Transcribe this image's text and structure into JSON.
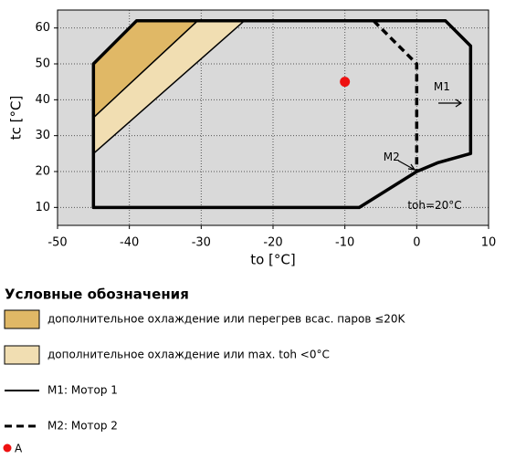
{
  "chart_data": {
    "type": "envelope",
    "xlabel": "to [°C]",
    "ylabel": "tc [°C]",
    "xlim": [
      -50,
      10
    ],
    "ylim": [
      5,
      65
    ],
    "xticks": [
      -50,
      -40,
      -30,
      -20,
      -10,
      0,
      10
    ],
    "yticks": [
      10,
      20,
      30,
      40,
      50,
      60
    ],
    "grid": true,
    "background": "#d9d9d9",
    "legend_title": "Условные обозначения",
    "series": [
      {
        "name": "дополнительное охлаждение или перегрев всас. паров ≤20K",
        "kind": "fill",
        "color": "#e0b866",
        "x": [
          -45,
          -39,
          -30.5,
          -45
        ],
        "y": [
          50,
          62,
          62,
          35
        ]
      },
      {
        "name": "дополнительное охлаждение или max. toh <0°C",
        "kind": "fill",
        "color": "#f1deb2",
        "x": [
          -45,
          -30.5,
          -24,
          -45
        ],
        "y": [
          35,
          62,
          62,
          25
        ]
      },
      {
        "name": "M1: Мотор 1",
        "kind": "line",
        "color": "#000000",
        "dashed": false,
        "x": [
          -45,
          -45,
          -39,
          4,
          7.5,
          7.5,
          3,
          0,
          -8
        ],
        "y": [
          10,
          50,
          62,
          62,
          55,
          25,
          22.5,
          20,
          10
        ]
      },
      {
        "name": "M2: Мотор 2",
        "kind": "line",
        "color": "#000000",
        "dashed": true,
        "x": [
          -6,
          0,
          0
        ],
        "y": [
          62,
          50,
          20
        ]
      },
      {
        "name": "A",
        "kind": "point",
        "color": "#ee1111",
        "x": [
          -10
        ],
        "y": [
          45
        ]
      }
    ],
    "annotations": [
      {
        "text": "M1",
        "x": 3.5,
        "y": 43.5
      },
      {
        "text": "M2",
        "x": -3.5,
        "y": 24
      },
      {
        "text": "toh=20°C",
        "x": 2.5,
        "y": 10.5
      }
    ]
  }
}
